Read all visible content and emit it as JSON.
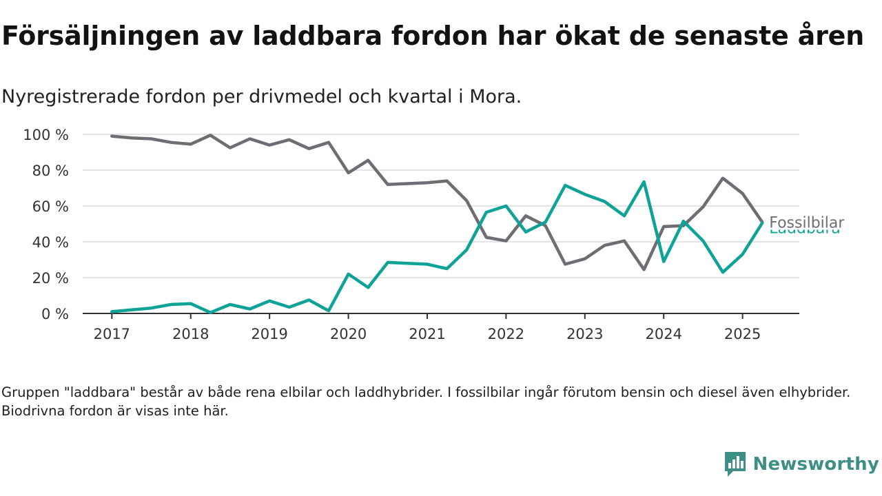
{
  "title": "Försäljningen av laddbara fordon har ökat de senaste åren",
  "subtitle": "Nyregistrerade fordon per drivmedel och kvartal i Mora.",
  "footnote": "Gruppen \"laddbara\" består av både rena elbilar och laddhybrider. I fossilbilar ingår förutom bensin och diesel även elhybrider. Biodrivna fordon är visas inte här.",
  "brand": {
    "name": "Newsworthy",
    "color": "#3d8f86"
  },
  "chart_data": {
    "type": "line",
    "x": [
      2017.0,
      2017.25,
      2017.5,
      2017.75,
      2018.0,
      2018.25,
      2018.5,
      2018.75,
      2019.0,
      2019.25,
      2019.5,
      2019.75,
      2020.0,
      2020.25,
      2020.5,
      2020.75,
      2021.0,
      2021.25,
      2021.5,
      2021.75,
      2022.0,
      2022.25,
      2022.5,
      2022.75,
      2023.0,
      2023.25,
      2023.5,
      2023.75,
      2024.0,
      2024.25,
      2024.5,
      2024.75,
      2025.0,
      2025.25
    ],
    "xticks": [
      2017,
      2018,
      2019,
      2020,
      2021,
      2022,
      2023,
      2024,
      2025
    ],
    "ylim": [
      0,
      100
    ],
    "yticks": [
      0,
      20,
      40,
      60,
      80,
      100
    ],
    "ytick_labels": [
      "0 %",
      "20 %",
      "40 %",
      "60 %",
      "80 %",
      "100 %"
    ],
    "grid": "horizontal",
    "series": [
      {
        "name": "Fossilbilar",
        "color": "#6e6d74",
        "values": [
          99,
          98,
          97.5,
          95.5,
          94.5,
          99.5,
          92.5,
          97.5,
          94,
          97,
          92,
          95.5,
          78.5,
          85.5,
          72,
          72.5,
          73,
          74,
          63,
          42.5,
          40.5,
          54.5,
          49,
          27.5,
          30.5,
          38,
          40.5,
          24.5,
          48.5,
          49,
          59.5,
          75.5,
          67,
          51
        ]
      },
      {
        "name": "Laddbara",
        "color": "#0fa397",
        "values": [
          1,
          2,
          3,
          5,
          5.5,
          0.5,
          5,
          2.5,
          7,
          3.5,
          7.5,
          1.5,
          22,
          14.5,
          28.5,
          28,
          27.5,
          25,
          35.5,
          56.5,
          60,
          45.5,
          51,
          71.5,
          66.5,
          62.5,
          54.5,
          73.5,
          29,
          51.5,
          40.5,
          23,
          33,
          50.5
        ]
      }
    ]
  }
}
